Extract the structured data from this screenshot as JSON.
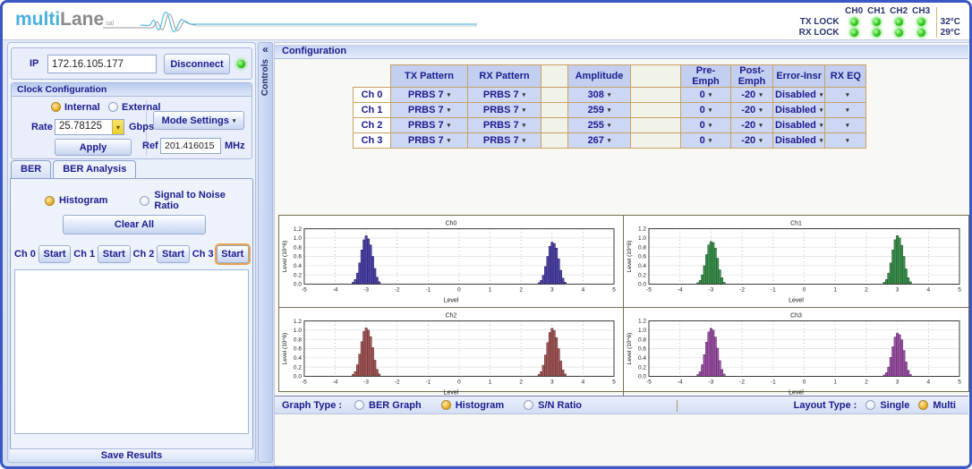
{
  "icons": {
    "dropdown_arrow": "▾",
    "collapse_icon": "«"
  },
  "header": {
    "logo": {
      "part1": "multi",
      "part2": "Lane",
      "sub": "sal"
    },
    "status": {
      "channel_labels": [
        "CH0",
        "CH1",
        "CH2",
        "CH3"
      ],
      "tx_lock_label": "TX LOCK",
      "rx_lock_label": "RX LOCK",
      "temp_tx": "32°C",
      "temp_rx": "29°C",
      "led_color": "#2cc618"
    }
  },
  "sidebar": {
    "ip": {
      "label": "IP",
      "value": "172.16.105.177",
      "disconnect_label": "Disconnect"
    },
    "clock": {
      "title": "Clock Configuration",
      "internal_label": "Internal",
      "internal_selected": true,
      "external_label": "External",
      "external_selected": false,
      "rate_label": "Rate",
      "rate_value": "25.78125",
      "rate_unit": "Gbps",
      "mode_settings_label": "Mode Settings",
      "apply_label": "Apply",
      "ref_label": "Ref",
      "ref_value": "201.416015",
      "ref_unit": "MHz"
    },
    "tabs": [
      {
        "label": "BER",
        "active": false
      },
      {
        "label": "BER Analysis",
        "active": true
      }
    ],
    "analysis": {
      "histogram_label": "Histogram",
      "histogram_selected": true,
      "snr_label": "Signal to Noise Ratio",
      "snr_selected": false,
      "clear_all_label": "Clear All",
      "channels": [
        {
          "label": "Ch 0",
          "start": "Start",
          "focused": false
        },
        {
          "label": "Ch 1",
          "start": "Start",
          "focused": false
        },
        {
          "label": "Ch 2",
          "start": "Start",
          "focused": false
        },
        {
          "label": "Ch 3",
          "start": "Start",
          "focused": true
        }
      ],
      "save_results_label": "Save Results"
    }
  },
  "controls_strip": {
    "label": "Controls"
  },
  "main": {
    "panel_title": "Configuration",
    "config_table": {
      "headers": [
        "TX Pattern",
        "RX Pattern",
        "",
        "Amplitude",
        "",
        "Pre-Emph",
        "Post-Emph",
        "Error-Insr",
        "RX EQ"
      ],
      "rows": [
        {
          "channel": "Ch 0",
          "tx": "PRBS 7",
          "rx": "PRBS 7",
          "amplitude": "308",
          "pre": "0",
          "post": "-20",
          "error": "Disabled",
          "rxeq": ""
        },
        {
          "channel": "Ch 1",
          "tx": "PRBS 7",
          "rx": "PRBS 7",
          "amplitude": "259",
          "pre": "0",
          "post": "-20",
          "error": "Disabled",
          "rxeq": ""
        },
        {
          "channel": "Ch 2",
          "tx": "PRBS 7",
          "rx": "PRBS 7",
          "amplitude": "255",
          "pre": "0",
          "post": "-20",
          "error": "Disabled",
          "rxeq": ""
        },
        {
          "channel": "Ch 3",
          "tx": "PRBS 7",
          "rx": "PRBS 7",
          "amplitude": "267",
          "pre": "0",
          "post": "-20",
          "error": "Disabled",
          "rxeq": ""
        }
      ]
    },
    "options_bar": {
      "graph_type_label": "Graph Type :",
      "graph_options": [
        {
          "label": "BER Graph",
          "selected": false
        },
        {
          "label": "Histogram",
          "selected": true
        },
        {
          "label": "S/N Ratio",
          "selected": false
        }
      ],
      "layout_type_label": "Layout Type :",
      "layout_options": [
        {
          "label": "Single",
          "selected": false
        },
        {
          "label": "Multi",
          "selected": true
        }
      ]
    }
  },
  "chart_data": [
    {
      "type": "histogram",
      "title": "Ch0",
      "xlabel": "Level",
      "ylabel": "Level (10^6)",
      "xlim": [
        -5,
        5
      ],
      "ylim": [
        0,
        1.2
      ],
      "xticks": [
        -5,
        -4,
        -3,
        -2,
        -1,
        0,
        1,
        2,
        3,
        4,
        5
      ],
      "yticks": [
        0.0,
        0.2,
        0.4,
        0.6,
        0.8,
        1.0,
        1.2
      ],
      "grid": true,
      "bin_width": 0.07,
      "bar_fill": "#4f46a8",
      "bar_stroke": "#23175e",
      "clusters": [
        {
          "center": -3,
          "heights": [
            0.04,
            0.1,
            0.24,
            0.46,
            0.74,
            0.96,
            1.05,
            0.98,
            0.85,
            0.6,
            0.34,
            0.15,
            0.05
          ]
        },
        {
          "center": 3,
          "heights": [
            0.03,
            0.08,
            0.19,
            0.38,
            0.6,
            0.82,
            0.91,
            0.88,
            0.78,
            0.55,
            0.3,
            0.13,
            0.04
          ]
        }
      ]
    },
    {
      "type": "histogram",
      "title": "Ch1",
      "xlabel": "Level",
      "ylabel": "Level (10^6)",
      "xlim": [
        -5,
        5
      ],
      "ylim": [
        0,
        1.2
      ],
      "xticks": [
        -5,
        -4,
        -3,
        -2,
        -1,
        0,
        1,
        2,
        3,
        4,
        5
      ],
      "yticks": [
        0.0,
        0.2,
        0.4,
        0.6,
        0.8,
        1.0,
        1.2
      ],
      "grid": true,
      "bin_width": 0.07,
      "bar_fill": "#3e9150",
      "bar_stroke": "#174f22",
      "clusters": [
        {
          "center": -3,
          "heights": [
            0.03,
            0.08,
            0.2,
            0.4,
            0.64,
            0.85,
            0.92,
            0.9,
            0.78,
            0.56,
            0.31,
            0.14,
            0.04
          ]
        },
        {
          "center": 3,
          "heights": [
            0.04,
            0.1,
            0.24,
            0.46,
            0.74,
            0.96,
            1.05,
            1.0,
            0.84,
            0.6,
            0.33,
            0.14,
            0.05
          ]
        }
      ]
    },
    {
      "type": "histogram",
      "title": "Ch2",
      "xlabel": "Level",
      "ylabel": "Level (10^6)",
      "xlim": [
        -5,
        5
      ],
      "ylim": [
        0,
        1.2
      ],
      "xticks": [
        -5,
        -4,
        -3,
        -2,
        -1,
        0,
        1,
        2,
        3,
        4,
        5
      ],
      "yticks": [
        0.0,
        0.2,
        0.4,
        0.6,
        0.8,
        1.0,
        1.2
      ],
      "grid": true,
      "bin_width": 0.07,
      "bar_fill": "#a15a5a",
      "bar_stroke": "#5e2222",
      "clusters": [
        {
          "center": -3,
          "heights": [
            0.04,
            0.1,
            0.25,
            0.48,
            0.75,
            0.97,
            1.05,
            1.0,
            0.86,
            0.62,
            0.35,
            0.15,
            0.05
          ]
        },
        {
          "center": 3,
          "heights": [
            0.04,
            0.1,
            0.24,
            0.46,
            0.73,
            0.95,
            1.04,
            0.99,
            0.84,
            0.6,
            0.33,
            0.14,
            0.05
          ]
        }
      ]
    },
    {
      "type": "histogram",
      "title": "Ch3",
      "xlabel": "Level",
      "ylabel": "Level (10^6)",
      "xlim": [
        -5,
        5
      ],
      "ylim": [
        0,
        1.2
      ],
      "xticks": [
        -5,
        -4,
        -3,
        -2,
        -1,
        0,
        1,
        2,
        3,
        4,
        5
      ],
      "yticks": [
        0.0,
        0.2,
        0.4,
        0.6,
        0.8,
        1.0,
        1.2
      ],
      "grid": true,
      "bin_width": 0.07,
      "bar_fill": "#9c55a4",
      "bar_stroke": "#531d5e",
      "clusters": [
        {
          "center": -3,
          "heights": [
            0.04,
            0.1,
            0.25,
            0.47,
            0.74,
            0.96,
            1.04,
            1.0,
            0.85,
            0.61,
            0.34,
            0.15,
            0.05
          ]
        },
        {
          "center": 3,
          "heights": [
            0.03,
            0.08,
            0.2,
            0.41,
            0.64,
            0.85,
            0.93,
            0.9,
            0.79,
            0.56,
            0.31,
            0.13,
            0.04
          ]
        }
      ]
    }
  ]
}
